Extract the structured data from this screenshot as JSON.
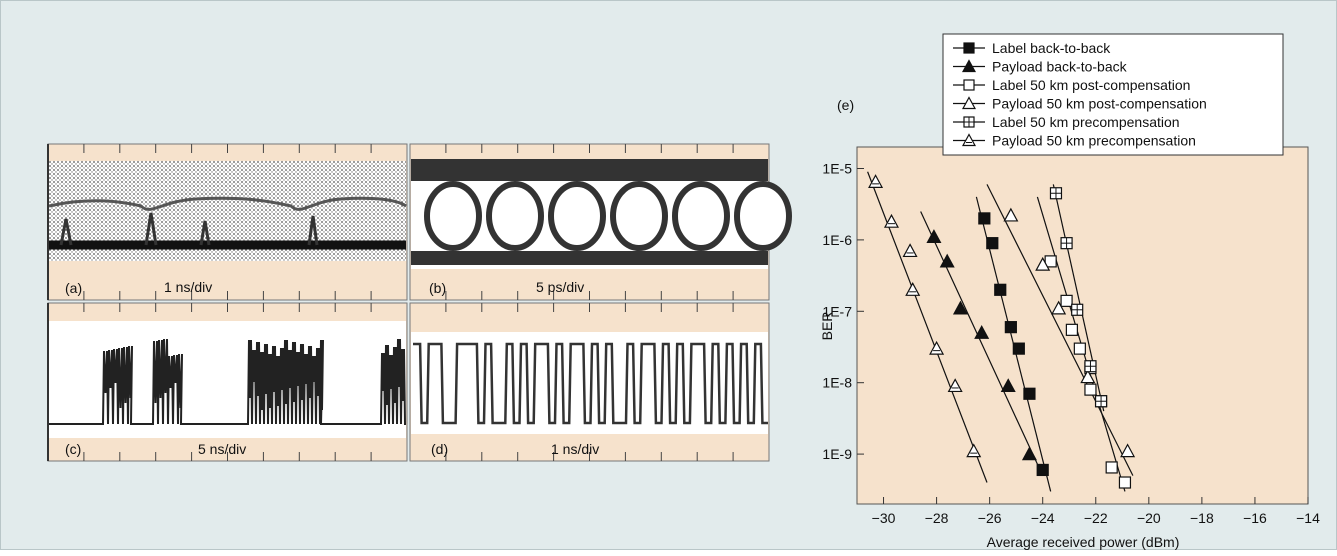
{
  "panels": {
    "a": {
      "letter": "(a)",
      "scale": "1 ns/div"
    },
    "b": {
      "letter": "(b)",
      "scale": "5 ps/div"
    },
    "c": {
      "letter": "(c)",
      "scale": "5 ns/div"
    },
    "d": {
      "letter": "(d)",
      "scale": "1 ns/div"
    },
    "e": {
      "letter": "(e)"
    }
  },
  "colors": {
    "plot_bg": "#f6e2cc",
    "figure_bg": "#e2ebec",
    "trace": "#222222"
  },
  "chart_data": {
    "type": "scatter",
    "xlabel": "Average received power (dBm)",
    "ylabel": "BER",
    "x_scale": "linear",
    "y_scale": "log",
    "xlim": [
      -31,
      -14
    ],
    "ylim": [
      2e-10,
      2e-05
    ],
    "x_ticks": [
      -30,
      -28,
      -26,
      -24,
      -22,
      -20,
      -18,
      -16,
      -14
    ],
    "y_ticks": [
      {
        "value": 1e-05,
        "label": "1E-5"
      },
      {
        "value": 1e-06,
        "label": "1E-6"
      },
      {
        "value": 1e-07,
        "label": "1E-7"
      },
      {
        "value": 1e-08,
        "label": "1E-8"
      },
      {
        "value": 1e-09,
        "label": "1E-9"
      }
    ],
    "grid": false,
    "legend_position": "top-right, above plot",
    "series": [
      {
        "name": "Label back-to-back",
        "marker": "filled-square",
        "points": [
          [
            -26.2,
            2e-06
          ],
          [
            -25.9,
            9e-07
          ],
          [
            -25.6,
            2e-07
          ],
          [
            -25.2,
            6e-08
          ],
          [
            -24.9,
            3e-08
          ],
          [
            -24.5,
            7e-09
          ],
          [
            -24.0,
            6e-10
          ]
        ],
        "fit": [
          [
            -26.5,
            4e-06
          ],
          [
            -23.7,
            3e-10
          ]
        ]
      },
      {
        "name": "Payload back-to-back",
        "marker": "filled-triangle",
        "points": [
          [
            -28.1,
            1.1e-06
          ],
          [
            -27.6,
            5e-07
          ],
          [
            -27.1,
            1.1e-07
          ],
          [
            -26.3,
            5e-08
          ],
          [
            -25.3,
            9e-09
          ],
          [
            -24.5,
            1e-09
          ]
        ],
        "fit": [
          [
            -28.6,
            2.5e-06
          ],
          [
            -24.1,
            6e-10
          ]
        ]
      },
      {
        "name": "Label 50 km post-compensation",
        "marker": "open-square",
        "points": [
          [
            -23.7,
            5e-07
          ],
          [
            -23.1,
            1.4e-07
          ],
          [
            -22.9,
            5.5e-08
          ],
          [
            -22.6,
            3e-08
          ],
          [
            -22.2,
            1.6e-08
          ],
          [
            -22.2,
            8e-09
          ],
          [
            -21.8,
            5.5e-09
          ],
          [
            -21.4,
            6.5e-10
          ],
          [
            -20.9,
            4e-10
          ]
        ],
        "fit": [
          [
            -24.2,
            4e-06
          ],
          [
            -20.9,
            3e-10
          ]
        ]
      },
      {
        "name": "Payload 50 km post-compensation",
        "marker": "open-triangle",
        "points": [
          [
            -25.2,
            2.2e-06
          ],
          [
            -24.0,
            4.5e-07
          ],
          [
            -23.4,
            1.1e-07
          ],
          [
            -22.3,
            1.2e-08
          ],
          [
            -20.8,
            1.1e-09
          ]
        ],
        "fit": [
          [
            -26.1,
            6e-06
          ],
          [
            -20.6,
            5e-10
          ]
        ]
      },
      {
        "name": "Label 50 km precompensation",
        "marker": "crossed-square",
        "points": [
          [
            -23.5,
            4.5e-06
          ],
          [
            -23.1,
            9e-07
          ],
          [
            -22.7,
            1.05e-07
          ],
          [
            -22.2,
            1.7e-08
          ],
          [
            -21.8,
            5.5e-09
          ]
        ],
        "fit": [
          [
            -23.6,
            6e-06
          ],
          [
            -21.7,
            4e-09
          ]
        ]
      },
      {
        "name": "Payload 50 km precompensation",
        "marker": "crossed-triangle",
        "points": [
          [
            -30.3,
            6.5e-06
          ],
          [
            -29.7,
            1.8e-06
          ],
          [
            -29.0,
            7e-07
          ],
          [
            -28.9,
            2e-07
          ],
          [
            -28.0,
            3e-08
          ],
          [
            -27.3,
            9e-09
          ],
          [
            -26.6,
            1.1e-09
          ]
        ],
        "fit": [
          [
            -30.6,
            9e-06
          ],
          [
            -26.1,
            4e-10
          ]
        ]
      }
    ]
  }
}
